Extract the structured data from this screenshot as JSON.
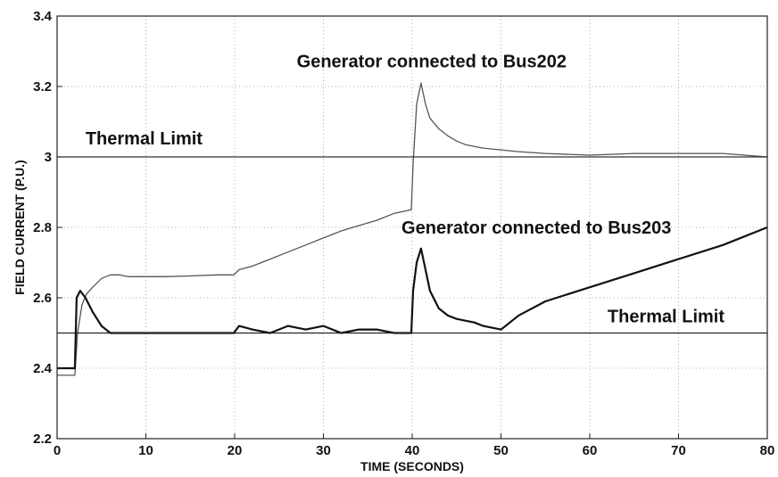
{
  "chart_data": {
    "type": "line",
    "title": "",
    "xlabel": "TIME (SECONDS)",
    "ylabel": "FIELD CURRENT (P.U.)",
    "xlim": [
      0,
      80
    ],
    "ylim": [
      2.2,
      3.4
    ],
    "xticks": [
      0,
      10,
      20,
      30,
      40,
      50,
      60,
      70,
      80
    ],
    "yticks": [
      2.2,
      2.4,
      2.6,
      2.8,
      3.0,
      3.2,
      3.4
    ],
    "xtick_labels": [
      "0",
      "10",
      "20",
      "30",
      "40",
      "50",
      "60",
      "70",
      "80"
    ],
    "ytick_labels": [
      "2.2",
      "2.4",
      "2.6",
      "2.8",
      "3",
      "3.2",
      "3.4"
    ],
    "grid": true,
    "series": [
      {
        "color": "#555555",
        "x": [
          0,
          2,
          2.3,
          2.8,
          3.3,
          4,
          5,
          6,
          7,
          8,
          10,
          12,
          15,
          18,
          19.9,
          20.5,
          22,
          24,
          26,
          28,
          30,
          32,
          34,
          36,
          38,
          39.9,
          40.1,
          40.5,
          41,
          41.5,
          42,
          43,
          44,
          45,
          46,
          47,
          48,
          50,
          52,
          55,
          60,
          65,
          70,
          75,
          80
        ],
        "y": [
          2.38,
          2.38,
          2.5,
          2.58,
          2.61,
          2.63,
          2.655,
          2.665,
          2.665,
          2.66,
          2.66,
          2.66,
          2.662,
          2.665,
          2.665,
          2.68,
          2.69,
          2.71,
          2.73,
          2.75,
          2.77,
          2.79,
          2.805,
          2.82,
          2.84,
          2.85,
          2.98,
          3.15,
          3.21,
          3.15,
          3.11,
          3.08,
          3.06,
          3.045,
          3.035,
          3.03,
          3.025,
          3.02,
          3.015,
          3.01,
          3.005,
          3.01,
          3.01,
          3.01,
          3.0
        ]
      },
      {
        "color": "#111111",
        "x": [
          0,
          2,
          2.2,
          2.6,
          3.2,
          4,
          5,
          6,
          7,
          8,
          10,
          15,
          19.9,
          20.5,
          22,
          24,
          26,
          28,
          30,
          32,
          34,
          36,
          38,
          39.9,
          40.1,
          40.5,
          41,
          41.5,
          42,
          43,
          44,
          45,
          46,
          47,
          48,
          50,
          52,
          55,
          60,
          65,
          70,
          75,
          80
        ],
        "y": [
          2.4,
          2.4,
          2.6,
          2.62,
          2.6,
          2.56,
          2.52,
          2.5,
          2.5,
          2.5,
          2.5,
          2.5,
          2.5,
          2.52,
          2.51,
          2.5,
          2.52,
          2.51,
          2.52,
          2.5,
          2.51,
          2.51,
          2.5,
          2.5,
          2.62,
          2.7,
          2.74,
          2.68,
          2.62,
          2.57,
          2.55,
          2.54,
          2.535,
          2.53,
          2.52,
          2.51,
          2.55,
          2.59,
          2.63,
          2.67,
          2.71,
          2.75,
          2.8
        ]
      },
      {
        "color": "#333333",
        "x": [
          0,
          80
        ],
        "y": [
          3.0,
          3.0
        ]
      },
      {
        "color": "#222222",
        "x": [
          0,
          80
        ],
        "y": [
          2.5,
          2.5
        ]
      }
    ],
    "annotations": [
      {
        "text": "Generator connected to Bus202",
        "x": 27,
        "y": 3.255
      },
      {
        "text": "Thermal Limit",
        "x": 3.2,
        "y": 3.035
      },
      {
        "text": "Generator connected to Bus203",
        "x": 38.8,
        "y": 2.782
      },
      {
        "text": "Thermal Limit",
        "x": 62,
        "y": 2.53
      }
    ]
  }
}
